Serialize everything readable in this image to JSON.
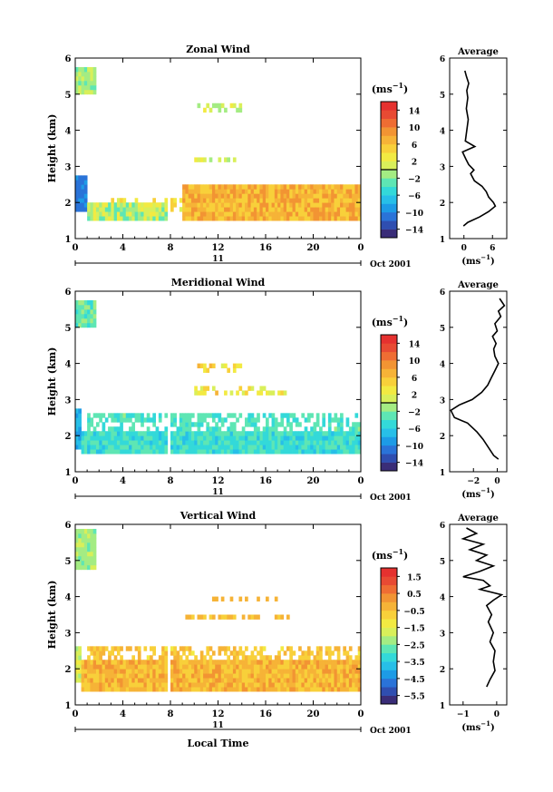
{
  "chart_data": [
    {
      "type": "heatmap",
      "title": "Zonal Wind",
      "ylabel": "Height (km)",
      "ylim": [
        1,
        6
      ],
      "xlim": [
        0,
        24
      ],
      "x_ticks": [
        "0",
        "4",
        "8",
        "12",
        "16",
        "20",
        "0"
      ],
      "y_ticks": [
        "1",
        "2",
        "3",
        "4",
        "5",
        "6"
      ],
      "date_day": "11",
      "date_month": "Oct 2001",
      "colorbar": {
        "unit": "(ms",
        "unit_exp": "−1",
        "unit_close": ")",
        "ticks": [
          "14",
          "10",
          "6",
          "2",
          "−2",
          "−6",
          "−10",
          "−14"
        ],
        "range": [
          -16,
          16
        ]
      },
      "profile": {
        "title": "Average",
        "xlabel": "(ms",
        "xlabel_exp": "−1",
        "xlabel_close": ")",
        "x_ticks": [
          "0",
          "6"
        ],
        "xlim": [
          -3,
          9
        ],
        "points": [
          [
            0.2,
            5.65
          ],
          [
            0.5,
            5.5
          ],
          [
            1.0,
            5.3
          ],
          [
            0.6,
            5.1
          ],
          [
            0.8,
            4.9
          ],
          [
            0.5,
            4.6
          ],
          [
            0.9,
            4.3
          ],
          [
            0.6,
            4.0
          ],
          [
            0.3,
            3.7
          ],
          [
            2.3,
            3.55
          ],
          [
            -0.3,
            3.4
          ],
          [
            0.4,
            3.2
          ],
          [
            1.0,
            3.05
          ],
          [
            2.1,
            2.9
          ],
          [
            1.4,
            2.8
          ],
          [
            2.2,
            2.6
          ],
          [
            3.8,
            2.45
          ],
          [
            4.7,
            2.3
          ],
          [
            5.2,
            2.15
          ],
          [
            6.2,
            2.0
          ],
          [
            6.6,
            1.9
          ],
          [
            5.2,
            1.75
          ],
          [
            3.3,
            1.6
          ],
          [
            0.8,
            1.45
          ],
          [
            -0.1,
            1.35
          ]
        ]
      }
    },
    {
      "type": "heatmap",
      "title": "Meridional Wind",
      "ylabel": "Height (km)",
      "ylim": [
        1,
        6
      ],
      "xlim": [
        0,
        24
      ],
      "x_ticks": [
        "0",
        "4",
        "8",
        "12",
        "16",
        "20",
        "0"
      ],
      "y_ticks": [
        "1",
        "2",
        "3",
        "4",
        "5",
        "6"
      ],
      "date_day": "11",
      "date_month": "Oct 2001",
      "colorbar": {
        "unit": "(ms",
        "unit_exp": "−1",
        "unit_close": ")",
        "ticks": [
          "14",
          "10",
          "6",
          "2",
          "−2",
          "−6",
          "−10",
          "−14"
        ],
        "range": [
          -16,
          16
        ]
      },
      "profile": {
        "title": "Average",
        "xlabel": "(ms",
        "xlabel_exp": "−1",
        "xlabel_close": ")",
        "x_ticks": [
          "−2",
          "0"
        ],
        "xlim": [
          -4,
          0.8
        ],
        "points": [
          [
            0.2,
            5.8
          ],
          [
            0.6,
            5.6
          ],
          [
            0.1,
            5.45
          ],
          [
            0.3,
            5.3
          ],
          [
            -0.2,
            5.1
          ],
          [
            0.0,
            4.9
          ],
          [
            -0.4,
            4.75
          ],
          [
            -0.1,
            4.55
          ],
          [
            -0.3,
            4.4
          ],
          [
            -0.2,
            4.2
          ],
          [
            0.1,
            4.0
          ],
          [
            -0.2,
            3.8
          ],
          [
            -0.5,
            3.6
          ],
          [
            -0.8,
            3.4
          ],
          [
            -1.3,
            3.2
          ],
          [
            -2.1,
            3.0
          ],
          [
            -3.2,
            2.85
          ],
          [
            -3.9,
            2.7
          ],
          [
            -3.6,
            2.5
          ],
          [
            -2.5,
            2.35
          ],
          [
            -1.7,
            2.1
          ],
          [
            -1.2,
            1.9
          ],
          [
            -0.8,
            1.7
          ],
          [
            -0.3,
            1.45
          ],
          [
            0.1,
            1.35
          ]
        ]
      }
    },
    {
      "type": "heatmap",
      "title": "Vertical Wind",
      "ylabel": "Height (km)",
      "xlabel": "Local Time",
      "ylim": [
        1,
        6
      ],
      "xlim": [
        0,
        24
      ],
      "x_ticks": [
        "0",
        "4",
        "8",
        "12",
        "16",
        "20",
        "0"
      ],
      "y_ticks": [
        "1",
        "2",
        "3",
        "4",
        "5",
        "6"
      ],
      "date_day": "11",
      "date_month": "Oct 2001",
      "colorbar": {
        "unit": "(ms",
        "unit_exp": "−1",
        "unit_close": ")",
        "ticks": [
          "1.5",
          "0.5",
          "−0.5",
          "−1.5",
          "−2.5",
          "−3.5",
          "−4.5",
          "−5.5"
        ],
        "range": [
          -6,
          2
        ]
      },
      "profile": {
        "title": "Average",
        "xlabel": "(ms",
        "xlabel_exp": "−1",
        "xlabel_close": ")",
        "x_ticks": [
          "−1",
          "0"
        ],
        "xlim": [
          -1.4,
          0.3
        ],
        "points": [
          [
            -0.9,
            5.9
          ],
          [
            -0.6,
            5.75
          ],
          [
            -1.0,
            5.6
          ],
          [
            -0.4,
            5.45
          ],
          [
            -0.8,
            5.3
          ],
          [
            -0.3,
            5.15
          ],
          [
            -0.6,
            5.0
          ],
          [
            -0.1,
            4.85
          ],
          [
            -0.5,
            4.7
          ],
          [
            -1.0,
            4.55
          ],
          [
            -0.4,
            4.45
          ],
          [
            -0.2,
            4.3
          ],
          [
            -0.5,
            4.2
          ],
          [
            0.15,
            4.05
          ],
          [
            -0.1,
            3.9
          ],
          [
            -0.3,
            3.75
          ],
          [
            -0.15,
            3.5
          ],
          [
            -0.25,
            3.3
          ],
          [
            -0.1,
            3.0
          ],
          [
            -0.2,
            2.75
          ],
          [
            -0.05,
            2.5
          ],
          [
            -0.1,
            2.2
          ],
          [
            -0.05,
            1.95
          ],
          [
            -0.2,
            1.7
          ],
          [
            -0.3,
            1.5
          ]
        ]
      }
    }
  ]
}
